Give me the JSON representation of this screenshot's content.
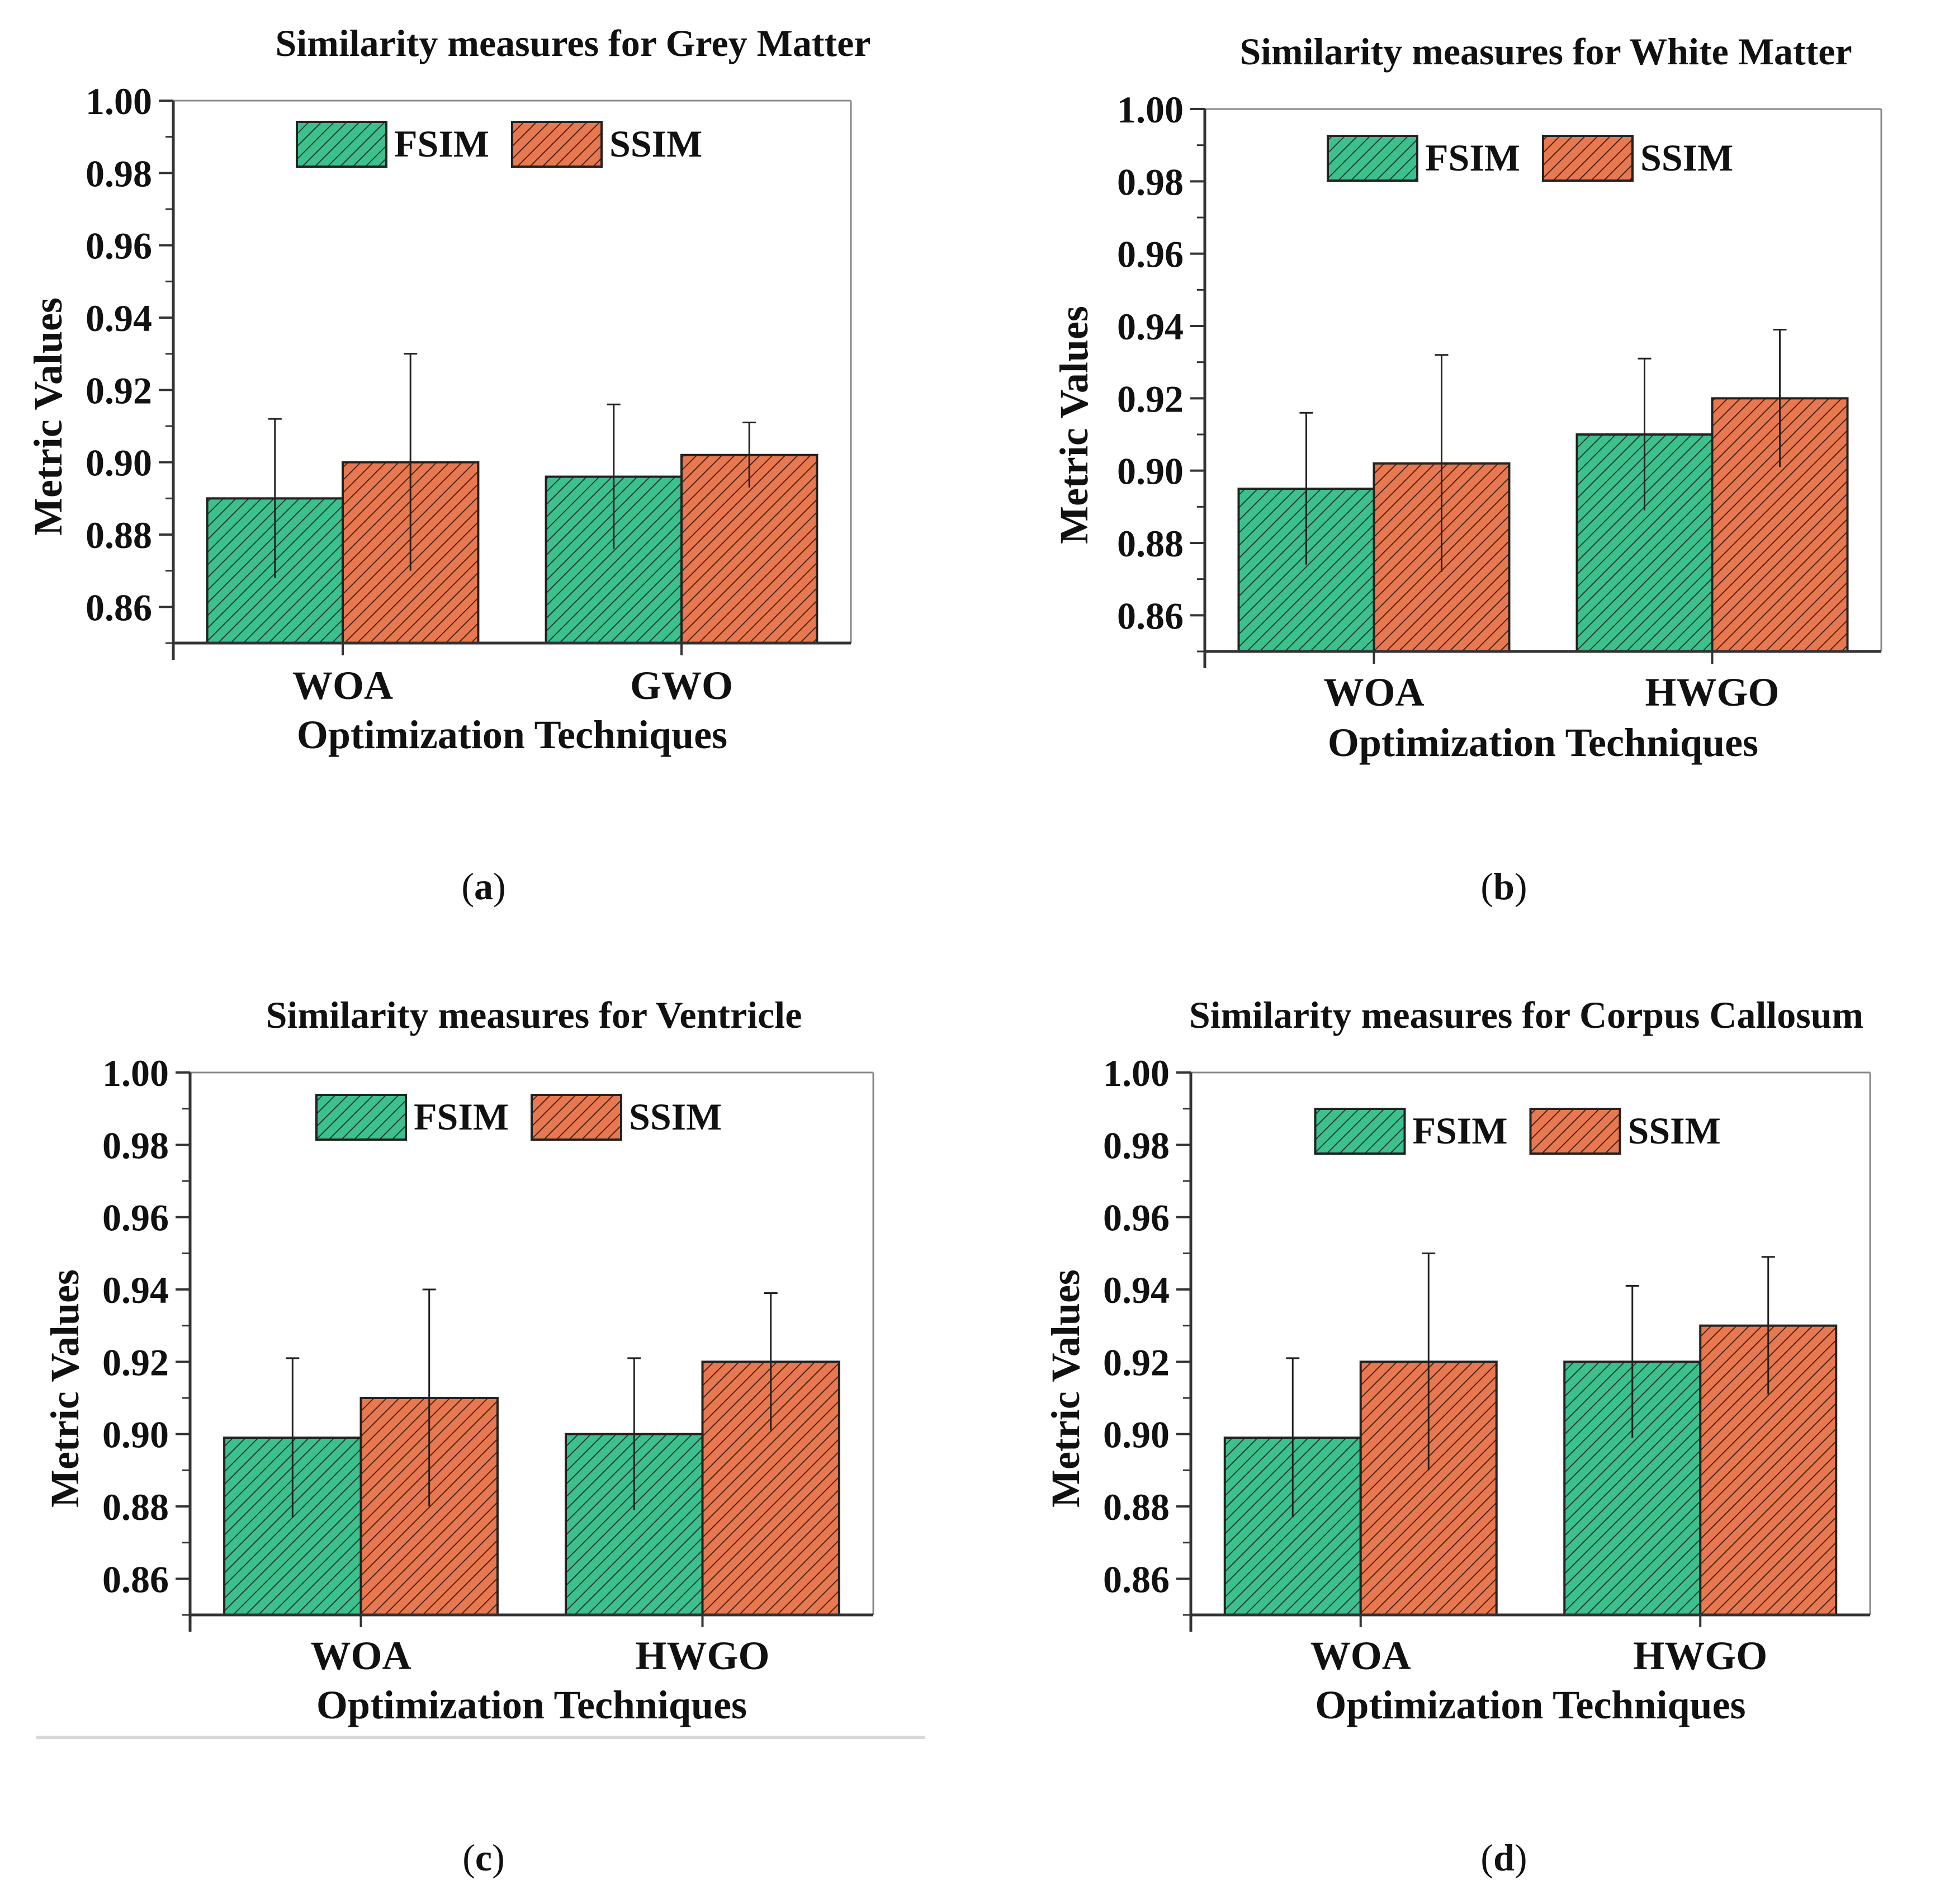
{
  "figure": {
    "colors": {
      "FSIM": "#3cc08d",
      "SSIM": "#e8784f",
      "hatch": "#1f2f25",
      "axis": "#333333",
      "rule": "#d8d8d8"
    }
  },
  "chart_data": [
    {
      "panel": "a",
      "type": "bar",
      "title": "Similarity measures for Grey Matter",
      "xlabel": "Optimization Techniques",
      "ylabel": "Metric Values",
      "categories": [
        "WOA",
        "GWO"
      ],
      "ylim": [
        0.85,
        1.0
      ],
      "yticks": [
        "0.86",
        "0.88",
        "0.90",
        "0.92",
        "0.94",
        "0.96",
        "0.98",
        "1.00"
      ],
      "legend": "top-center",
      "series": [
        {
          "name": "FSIM",
          "values": [
            0.89,
            0.896
          ],
          "errors": [
            0.022,
            0.02
          ]
        },
        {
          "name": "SSIM",
          "values": [
            0.9,
            0.902
          ],
          "errors": [
            0.03,
            0.009
          ]
        }
      ]
    },
    {
      "panel": "b",
      "type": "bar",
      "title": "Similarity measures for White Matter",
      "xlabel": "Optimization Techniques",
      "ylabel": "Metric Values",
      "categories": [
        "WOA",
        "HWGO"
      ],
      "ylim": [
        0.85,
        1.0
      ],
      "yticks": [
        "0.86",
        "0.88",
        "0.90",
        "0.92",
        "0.94",
        "0.96",
        "0.98",
        "1.00"
      ],
      "legend": "top-center",
      "series": [
        {
          "name": "FSIM",
          "values": [
            0.895,
            0.91
          ],
          "errors": [
            0.021,
            0.021
          ]
        },
        {
          "name": "SSIM",
          "values": [
            0.902,
            0.92
          ],
          "errors": [
            0.03,
            0.019
          ]
        }
      ]
    },
    {
      "panel": "c",
      "type": "bar",
      "title": "Similarity measures for Ventricle",
      "xlabel": "Optimization Techniques",
      "ylabel": "Metric Values",
      "categories": [
        "WOA",
        "HWGO"
      ],
      "ylim": [
        0.85,
        1.0
      ],
      "yticks": [
        "0.86",
        "0.88",
        "0.90",
        "0.92",
        "0.94",
        "0.96",
        "0.98",
        "1.00"
      ],
      "legend": "top-center",
      "series": [
        {
          "name": "FSIM",
          "values": [
            0.899,
            0.9
          ],
          "errors": [
            0.022,
            0.021
          ]
        },
        {
          "name": "SSIM",
          "values": [
            0.91,
            0.92
          ],
          "errors": [
            0.03,
            0.019
          ]
        }
      ]
    },
    {
      "panel": "d",
      "type": "bar",
      "title": "Similarity measures for Corpus Callosum",
      "xlabel": "Optimization Techniques",
      "ylabel": "Metric Values",
      "categories": [
        "WOA",
        "HWGO"
      ],
      "ylim": [
        0.85,
        1.0
      ],
      "yticks": [
        "0.86",
        "0.88",
        "0.90",
        "0.92",
        "0.94",
        "0.96",
        "0.98",
        "1.00"
      ],
      "legend": "top-center",
      "series": [
        {
          "name": "FSIM",
          "values": [
            0.899,
            0.92
          ],
          "errors": [
            0.022,
            0.021
          ]
        },
        {
          "name": "SSIM",
          "values": [
            0.92,
            0.93
          ],
          "errors": [
            0.03,
            0.019
          ]
        }
      ]
    }
  ]
}
